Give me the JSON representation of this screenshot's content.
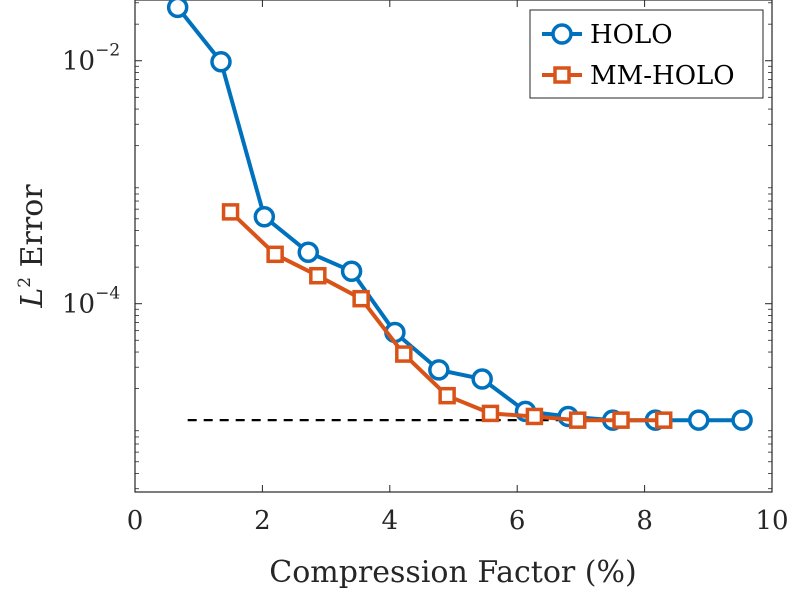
{
  "chart_data": {
    "type": "line",
    "xlabel": "Compression Factor (%)",
    "ylabel": "L^2 Error",
    "ylabel_base": "L",
    "ylabel_exponent": "2",
    "ylabel_rest": " Error",
    "xlim": [
      0,
      10
    ],
    "ylim_log10": [
      -5.55,
      -1.5
    ],
    "y_scale": "log",
    "x_ticks": [
      0,
      2,
      4,
      6,
      8,
      10
    ],
    "x_tick_labels": [
      "0",
      "2",
      "4",
      "6",
      "8",
      "10"
    ],
    "y_ticks": [
      0.01,
      0.0001
    ],
    "y_tick_labels": [
      {
        "base": "10",
        "exponent": "−2"
      },
      {
        "base": "10",
        "exponent": "−4"
      }
    ],
    "grid": false,
    "legend_position": "top-right",
    "series": [
      {
        "name": "HOLO",
        "color": "#0072BD",
        "marker": "circle",
        "x": [
          0.67,
          1.35,
          2.03,
          2.72,
          3.4,
          4.08,
          4.77,
          5.45,
          6.13,
          6.8,
          7.5,
          8.17,
          8.85,
          9.53
        ],
        "y": [
          0.0275,
          0.0098,
          0.00052,
          0.000265,
          0.000185,
          5.8e-05,
          2.85e-05,
          2.4e-05,
          1.3e-05,
          1.18e-05,
          1.1e-05,
          1.1e-05,
          1.1e-05,
          1.1e-05
        ]
      },
      {
        "name": "MM-HOLO",
        "color": "#D95319",
        "marker": "square",
        "x": [
          1.5,
          2.2,
          2.87,
          3.55,
          4.22,
          4.9,
          5.58,
          6.27,
          6.95,
          7.63,
          8.3
        ],
        "y": [
          0.00057,
          0.000255,
          0.00017,
          0.00011,
          3.85e-05,
          1.75e-05,
          1.25e-05,
          1.18e-05,
          1.1e-05,
          1.1e-05,
          1.1e-05
        ]
      }
    ],
    "reference_line": {
      "style": "dashed",
      "color": "#000000",
      "x_range": [
        0.67,
        9.53
      ],
      "y": 1.1e-05
    }
  }
}
